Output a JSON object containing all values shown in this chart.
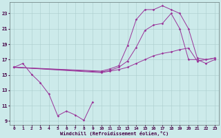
{
  "background_color": "#cceaea",
  "grid_color": "#aacccc",
  "line_color": "#993399",
  "xlabel": "Windchill (Refroidissement éolien,°C)",
  "xlim": [
    -0.5,
    23.5
  ],
  "ylim": [
    8.5,
    24.5
  ],
  "yticks": [
    9,
    11,
    13,
    15,
    17,
    19,
    21,
    23
  ],
  "xticks": [
    0,
    1,
    2,
    3,
    4,
    5,
    6,
    7,
    8,
    9,
    10,
    11,
    12,
    13,
    14,
    15,
    16,
    17,
    18,
    19,
    20,
    21,
    22,
    23
  ],
  "series": [
    {
      "x": [
        0,
        1,
        2,
        3,
        4,
        5,
        6,
        7,
        8,
        9
      ],
      "y": [
        16.0,
        16.5,
        15.1,
        14.0,
        12.5,
        9.7,
        10.3,
        9.8,
        9.1,
        11.5
      ]
    },
    {
      "x": [
        0,
        10,
        11,
        12,
        13,
        14,
        15,
        16,
        17,
        18,
        19,
        20,
        21,
        22,
        23
      ],
      "y": [
        16.0,
        15.3,
        15.5,
        15.7,
        16.0,
        16.5,
        17.0,
        17.5,
        17.8,
        18.0,
        18.3,
        18.5,
        16.8,
        17.0,
        17.2
      ]
    },
    {
      "x": [
        0,
        10,
        11,
        12,
        13,
        14,
        15,
        16,
        17,
        18,
        19,
        20,
        21,
        22,
        23
      ],
      "y": [
        16.0,
        15.5,
        15.8,
        16.2,
        18.8,
        22.2,
        23.5,
        23.5,
        24.0,
        23.5,
        23.0,
        21.0,
        17.2,
        17.0,
        17.2
      ]
    },
    {
      "x": [
        0,
        10,
        11,
        12,
        13,
        14,
        15,
        16,
        17,
        18,
        19,
        20,
        21,
        22,
        23
      ],
      "y": [
        16.0,
        15.4,
        15.6,
        16.0,
        16.8,
        18.6,
        20.8,
        21.5,
        21.7,
        23.0,
        21.0,
        17.0,
        17.0,
        16.5,
        17.0
      ]
    }
  ]
}
